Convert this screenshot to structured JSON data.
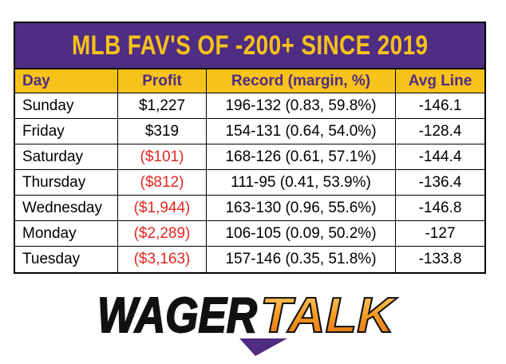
{
  "title": "MLB FAV'S OF -200+ SINCE 2019",
  "table": {
    "header": [
      "Day",
      "Profit",
      "Record (margin, %)",
      "Avg Line"
    ],
    "rows": [
      [
        "Sunday",
        "$1,227",
        "196-132 (0.83, 59.8%)",
        "-146.1"
      ],
      [
        "Friday",
        "$319",
        "154-131 (0.64, 54.0%)",
        "-128.4"
      ],
      [
        "Saturday",
        "($101)",
        "168-126 (0.61, 57.1%)",
        "-144.4"
      ],
      [
        "Thursday",
        "($812)",
        "111-95 (0.41, 53.9%)",
        "-136.4"
      ],
      [
        "Wednesday",
        "($1,944)",
        "163-130 (0.96, 55.6%)",
        "-146.8"
      ],
      [
        "Monday",
        "($2,289)",
        "106-105 (0.09, 50.2%)",
        "-127"
      ],
      [
        "Tuesday",
        "($3,163)",
        "157-146 (0.35, 51.8%)",
        "-133.8"
      ]
    ]
  },
  "logo": {
    "wager": "WAGER",
    "talk": "TALK"
  }
}
